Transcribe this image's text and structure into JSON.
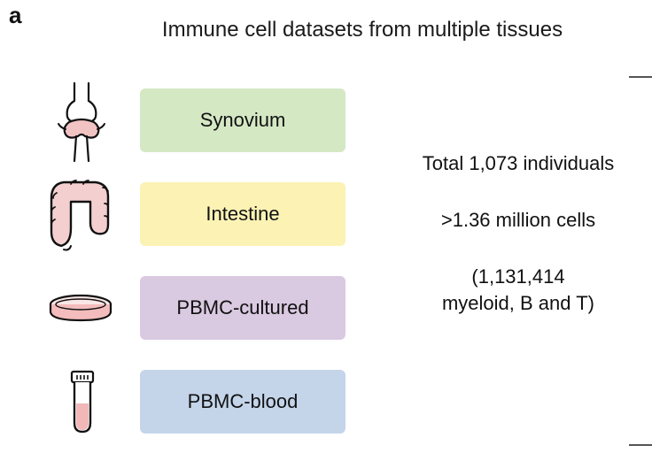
{
  "panel_label": "a",
  "title": "Immune cell datasets from multiple tissues",
  "tissues": [
    {
      "label": "Synovium",
      "icon": "knee-joint-icon",
      "color": "#d4e8c4"
    },
    {
      "label": "Intestine",
      "icon": "intestine-icon",
      "color": "#fbf2b4"
    },
    {
      "label": "PBMC-cultured",
      "icon": "petri-dish-icon",
      "color": "#d9c9e1"
    },
    {
      "label": "PBMC-blood",
      "icon": "blood-tube-icon",
      "color": "#c4d5ea"
    }
  ],
  "stats": {
    "individuals": "Total 1,073 individuals",
    "cells": ">1.36 million cells",
    "breakdown_line1": "(1,131,414",
    "breakdown_line2": "myeloid, B and T)"
  }
}
